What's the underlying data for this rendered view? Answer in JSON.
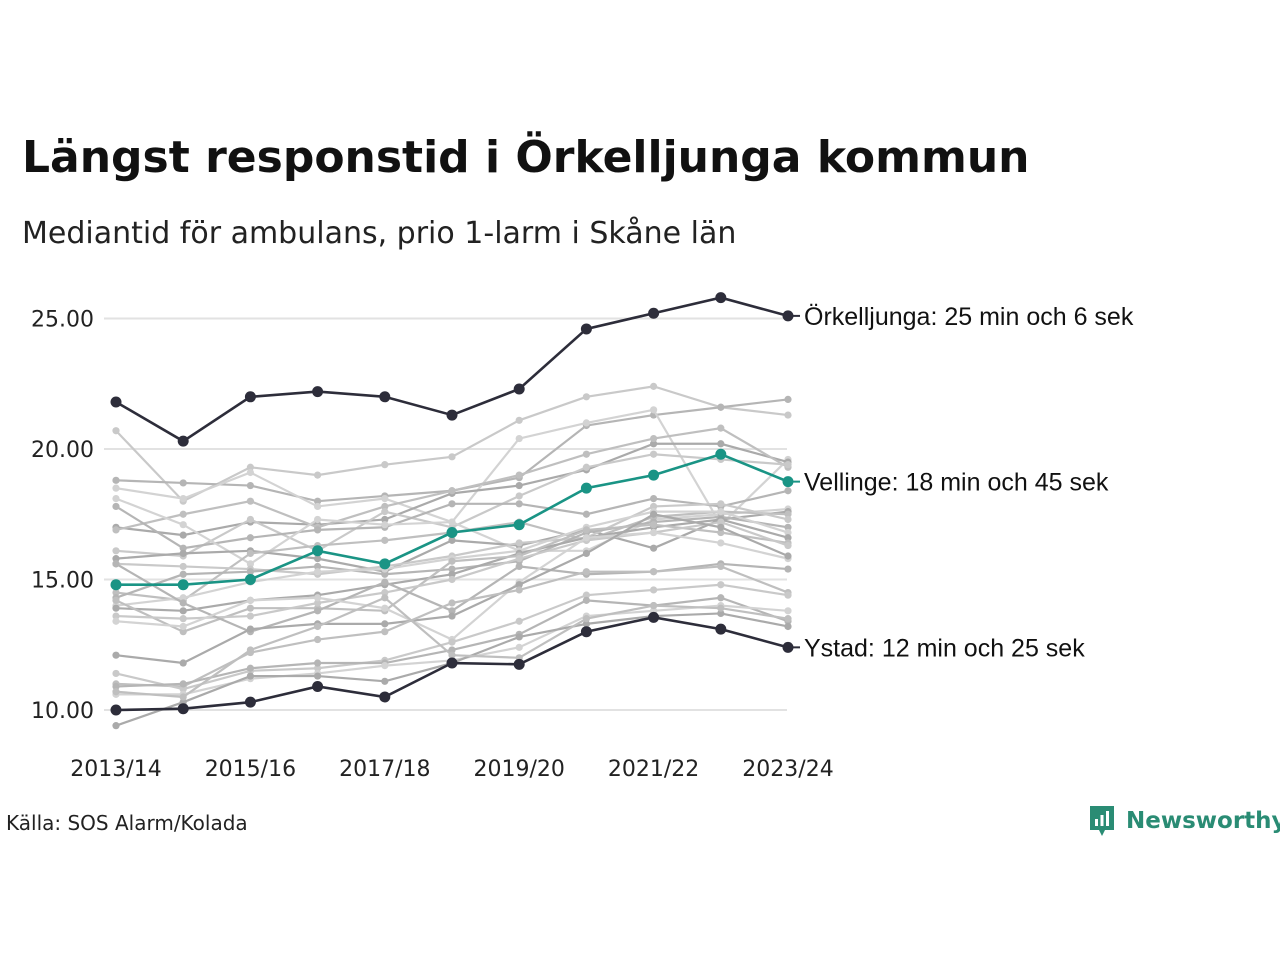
{
  "title": "Längst responstid i Örkelljunga kommun",
  "subtitle": "Mediantid för ambulans, prio 1-larm i Skåne län",
  "source": "Källa: SOS Alarm/Kolada",
  "logo_text": "Newsworthy",
  "colors": {
    "highlight_dark": "#2d2d3a",
    "highlight_teal": "#1a9485",
    "background_lines": "#c4c4c4",
    "grid": "#e2e2e2",
    "logo": "#2a8c74"
  },
  "chart_data": {
    "type": "line",
    "x": [
      "2013/14",
      "2014/15",
      "2015/16",
      "2016/17",
      "2017/18",
      "2018/19",
      "2019/20",
      "2020/21",
      "2021/22",
      "2022/23",
      "2023/24"
    ],
    "x_tick_labels": [
      "2013/14",
      "2015/16",
      "2017/18",
      "2019/20",
      "2021/22",
      "2023/24"
    ],
    "y_ticks": [
      "10.00",
      "15.00",
      "20.00",
      "25.00"
    ],
    "ylim": [
      9.5,
      26
    ],
    "grid": true,
    "highlighted_series": [
      {
        "name": "Örkelljunga",
        "label": "Örkelljunga: 25 min och 6 sek",
        "color": "#2d2d3a",
        "values": [
          21.8,
          20.3,
          22.0,
          22.2,
          22.0,
          21.3,
          22.3,
          24.6,
          25.2,
          25.8,
          25.1
        ]
      },
      {
        "name": "Vellinge",
        "label": "Vellinge: 18 min och 45 sek",
        "color": "#1a9485",
        "values": [
          14.8,
          14.8,
          15.0,
          16.1,
          15.6,
          16.8,
          17.1,
          18.5,
          19.0,
          19.8,
          18.75
        ]
      },
      {
        "name": "Ystad",
        "label": "Ystad: 12 min och 25 sek",
        "color": "#2d2d3a",
        "values": [
          10.0,
          10.05,
          10.3,
          10.9,
          10.5,
          11.8,
          11.75,
          13.0,
          13.55,
          13.1,
          12.4
        ]
      }
    ],
    "background_series": [
      [
        20.7,
        18.0,
        19.3,
        19.0,
        19.4,
        19.7,
        21.1,
        22.0,
        22.4,
        21.6,
        21.3
      ],
      [
        18.8,
        18.7,
        18.6,
        18.0,
        18.2,
        18.4,
        18.9,
        20.9,
        21.3,
        21.6,
        21.9
      ],
      [
        18.5,
        18.1,
        19.1,
        17.8,
        18.1,
        17.2,
        20.4,
        21.0,
        21.5,
        17.1,
        19.6
      ],
      [
        17.0,
        16.7,
        17.2,
        17.1,
        17.3,
        18.3,
        18.6,
        19.2,
        20.2,
        20.2,
        19.5
      ],
      [
        16.9,
        17.5,
        18.0,
        17.0,
        17.8,
        18.4,
        19.0,
        19.8,
        20.4,
        20.8,
        19.3
      ],
      [
        16.1,
        15.9,
        17.3,
        16.1,
        17.6,
        17.0,
        18.2,
        19.3,
        19.8,
        19.6,
        19.4
      ],
      [
        17.8,
        16.2,
        16.6,
        16.9,
        17.0,
        17.9,
        17.9,
        17.5,
        18.1,
        17.8,
        18.4
      ],
      [
        18.1,
        17.1,
        15.6,
        17.3,
        17.1,
        17.2,
        16.1,
        16.1,
        17.3,
        17.5,
        17.7
      ],
      [
        15.8,
        16.0,
        16.1,
        15.8,
        15.3,
        16.5,
        16.3,
        16.9,
        16.2,
        17.3,
        17.6
      ],
      [
        14.5,
        14.2,
        16.0,
        16.3,
        16.5,
        16.8,
        17.2,
        16.5,
        17.4,
        17.6,
        17.5
      ],
      [
        15.6,
        15.5,
        15.4,
        15.2,
        15.5,
        15.9,
        16.4,
        16.6,
        17.8,
        17.9,
        17.3
      ],
      [
        14.3,
        15.2,
        15.3,
        15.5,
        15.2,
        15.4,
        15.7,
        16.8,
        17.2,
        17.4,
        17.0
      ],
      [
        14.0,
        14.3,
        14.9,
        15.3,
        15.4,
        15.8,
        16.1,
        17.0,
        17.6,
        17.6,
        16.8
      ],
      [
        13.9,
        13.8,
        14.2,
        14.4,
        14.8,
        15.2,
        16.0,
        16.6,
        17.0,
        17.3,
        16.6
      ],
      [
        14.2,
        13.0,
        13.9,
        13.9,
        13.8,
        15.7,
        15.9,
        16.9,
        17.1,
        16.8,
        16.4
      ],
      [
        13.6,
        13.5,
        13.6,
        14.1,
        14.5,
        15.0,
        15.8,
        16.5,
        16.8,
        17.2,
        16.3
      ],
      [
        15.6,
        14.1,
        13.0,
        13.8,
        14.9,
        13.8,
        15.5,
        15.2,
        15.3,
        15.6,
        15.4
      ],
      [
        13.4,
        13.2,
        14.2,
        14.3,
        13.9,
        12.7,
        14.9,
        16.6,
        16.8,
        16.4,
        15.8
      ],
      [
        12.1,
        11.8,
        13.1,
        13.3,
        13.3,
        13.6,
        14.8,
        16.0,
        17.5,
        17.0,
        15.9
      ],
      [
        11.0,
        10.9,
        12.2,
        12.7,
        13.0,
        14.1,
        14.6,
        15.3,
        15.3,
        15.5,
        14.5
      ],
      [
        11.4,
        10.8,
        11.5,
        11.6,
        11.9,
        12.6,
        13.4,
        14.4,
        14.6,
        14.8,
        14.4
      ],
      [
        10.9,
        11.0,
        11.6,
        11.8,
        11.8,
        12.3,
        12.9,
        14.2,
        14.0,
        14.3,
        13.4
      ],
      [
        10.6,
        10.6,
        11.2,
        11.4,
        11.7,
        11.9,
        12.4,
        13.6,
        13.8,
        14.0,
        13.8
      ],
      [
        9.4,
        10.3,
        11.3,
        11.3,
        11.1,
        11.8,
        12.8,
        13.3,
        13.6,
        13.7,
        13.2
      ],
      [
        10.7,
        10.5,
        12.3,
        13.2,
        14.3,
        12.1,
        12.0,
        13.5,
        14.0,
        13.9,
        13.5
      ]
    ]
  }
}
